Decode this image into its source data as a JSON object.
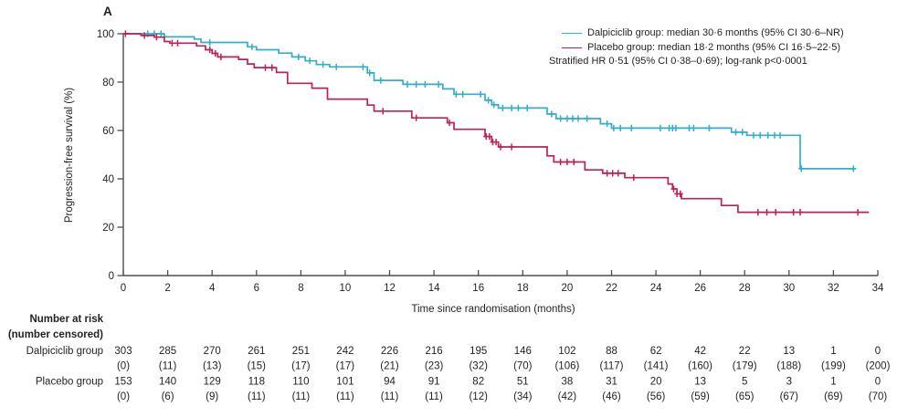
{
  "panel_label": "A",
  "colors": {
    "dalpiciclib": "#31AECE",
    "placebo": "#BE2057",
    "axis": "#4D4D4F",
    "text": "#231F20"
  },
  "legend": {
    "dalpiciclib": "Dalpiciclib group: median 30·6 months (95% CI 30·6–NR)",
    "placebo": "Placebo group: median 18·2 months (95% CI 16·5–22·5)",
    "stratified": "Stratified HR 0·51 (95% CI 0·38–0·69); log-rank p<0·0001"
  },
  "axes": {
    "x": {
      "label": "Time since randomisation (months)",
      "min": 0,
      "max": 34,
      "ticks": [
        0,
        2,
        4,
        6,
        8,
        10,
        12,
        14,
        16,
        18,
        20,
        22,
        24,
        26,
        28,
        30,
        32,
        34
      ]
    },
    "y": {
      "label": "Progression-free survival (%)",
      "min": 0,
      "max": 100,
      "ticks": [
        0,
        20,
        40,
        60,
        80,
        100
      ]
    }
  },
  "chart_data": {
    "type": "line",
    "subtype": "kaplan-meier-step",
    "title": "",
    "xlabel": "Time since randomisation (months)",
    "ylabel": "Progression-free survival (%)",
    "xlim": [
      0,
      34
    ],
    "ylim": [
      0,
      100
    ],
    "grid": false,
    "legend_position": "top-right",
    "series": [
      {
        "name": "Dalpiciclib group",
        "color": "#31AECE",
        "median_months": "30·6",
        "ci": "30·6–NR",
        "steps": [
          [
            0,
            100
          ],
          [
            1.85,
            98.7
          ],
          [
            3.2,
            97.8
          ],
          [
            3.5,
            96.4
          ],
          [
            5.6,
            94.6
          ],
          [
            6.0,
            93.4
          ],
          [
            7.0,
            92.0
          ],
          [
            7.6,
            90.4
          ],
          [
            8.2,
            88.8
          ],
          [
            8.7,
            87.3
          ],
          [
            9.3,
            86.3
          ],
          [
            11.0,
            83.8
          ],
          [
            11.3,
            80.7
          ],
          [
            12.6,
            79.1
          ],
          [
            14.4,
            77.2
          ],
          [
            14.9,
            75.0
          ],
          [
            16.3,
            72.5
          ],
          [
            16.6,
            70.6
          ],
          [
            16.9,
            69.3
          ],
          [
            19.1,
            66.8
          ],
          [
            19.5,
            64.9
          ],
          [
            21.5,
            62.8
          ],
          [
            22.0,
            61.0
          ],
          [
            27.4,
            59.3
          ],
          [
            28.1,
            58.0
          ],
          [
            30.5,
            44.2
          ]
        ],
        "end_month": 33.0,
        "censors": [
          1.1,
          1.4,
          1.7,
          3.9,
          5.8,
          7.9,
          8.4,
          9.0,
          9.6,
          10.8,
          11.1,
          11.6,
          12.8,
          13.2,
          13.6,
          14.2,
          15.0,
          15.3,
          16.1,
          16.45,
          16.7,
          17.1,
          17.5,
          17.8,
          18.2,
          19.3,
          19.7,
          20.0,
          20.25,
          20.5,
          20.9,
          21.8,
          22.1,
          22.4,
          22.9,
          24.2,
          24.6,
          24.75,
          24.9,
          25.5,
          25.7,
          26.4,
          27.6,
          27.9,
          28.4,
          28.7,
          29.05,
          29.35,
          29.6,
          30.55,
          32.9
        ]
      },
      {
        "name": "Placebo group",
        "color": "#BE2057",
        "median_months": "18·2",
        "ci": "16·5–22·5",
        "steps": [
          [
            0,
            100
          ],
          [
            0.8,
            99.3
          ],
          [
            1.4,
            98.6
          ],
          [
            1.85,
            96.8
          ],
          [
            2.1,
            96.1
          ],
          [
            3.3,
            95.0
          ],
          [
            3.7,
            93.4
          ],
          [
            4.0,
            91.9
          ],
          [
            4.25,
            90.4
          ],
          [
            5.2,
            89.4
          ],
          [
            5.6,
            87.5
          ],
          [
            5.9,
            86.0
          ],
          [
            6.9,
            84.0
          ],
          [
            7.4,
            79.5
          ],
          [
            8.5,
            77.5
          ],
          [
            9.2,
            73.0
          ],
          [
            11.0,
            70.5
          ],
          [
            11.3,
            68.0
          ],
          [
            13.0,
            65.2
          ],
          [
            14.6,
            63.2
          ],
          [
            14.9,
            60.5
          ],
          [
            16.3,
            57.5
          ],
          [
            16.6,
            55.2
          ],
          [
            16.9,
            53.2
          ],
          [
            19.1,
            49.5
          ],
          [
            19.4,
            47.0
          ],
          [
            20.8,
            43.7
          ],
          [
            21.6,
            42.3
          ],
          [
            22.6,
            40.5
          ],
          [
            24.55,
            37.9
          ],
          [
            24.75,
            35.8
          ],
          [
            24.95,
            33.8
          ],
          [
            25.15,
            31.8
          ],
          [
            26.95,
            29.0
          ],
          [
            27.7,
            26.2
          ]
        ],
        "end_month": 33.6,
        "censors": [
          0.1,
          0.95,
          1.5,
          2.2,
          2.45,
          3.9,
          4.15,
          4.4,
          6.4,
          6.7,
          11.7,
          13.2,
          14.7,
          16.35,
          16.5,
          16.65,
          16.8,
          17.0,
          17.5,
          19.7,
          20.0,
          20.3,
          21.8,
          22.05,
          22.3,
          23.0,
          24.8,
          24.95,
          25.1,
          28.6,
          29.0,
          29.4,
          30.2,
          30.5,
          33.1
        ]
      }
    ]
  },
  "risk_table": {
    "header_line1": "Number at risk",
    "header_line2": "(number censored)",
    "timepoints": [
      0,
      2,
      4,
      6,
      8,
      10,
      12,
      14,
      16,
      18,
      20,
      22,
      24,
      26,
      28,
      30,
      32,
      34
    ],
    "rows": [
      {
        "label": "Dalpiciclib group",
        "at_risk": [
          303,
          285,
          270,
          261,
          251,
          242,
          226,
          216,
          195,
          146,
          102,
          88,
          62,
          42,
          22,
          13,
          1,
          0
        ],
        "censored": [
          0,
          11,
          13,
          15,
          17,
          17,
          21,
          23,
          32,
          70,
          106,
          117,
          141,
          160,
          179,
          188,
          199,
          200
        ]
      },
      {
        "label": "Placebo group",
        "at_risk": [
          153,
          140,
          129,
          118,
          110,
          101,
          94,
          91,
          82,
          51,
          38,
          31,
          20,
          13,
          5,
          3,
          1,
          0
        ],
        "censored": [
          0,
          6,
          9,
          11,
          11,
          11,
          11,
          11,
          12,
          34,
          42,
          46,
          56,
          59,
          65,
          67,
          69,
          70
        ]
      }
    ]
  }
}
